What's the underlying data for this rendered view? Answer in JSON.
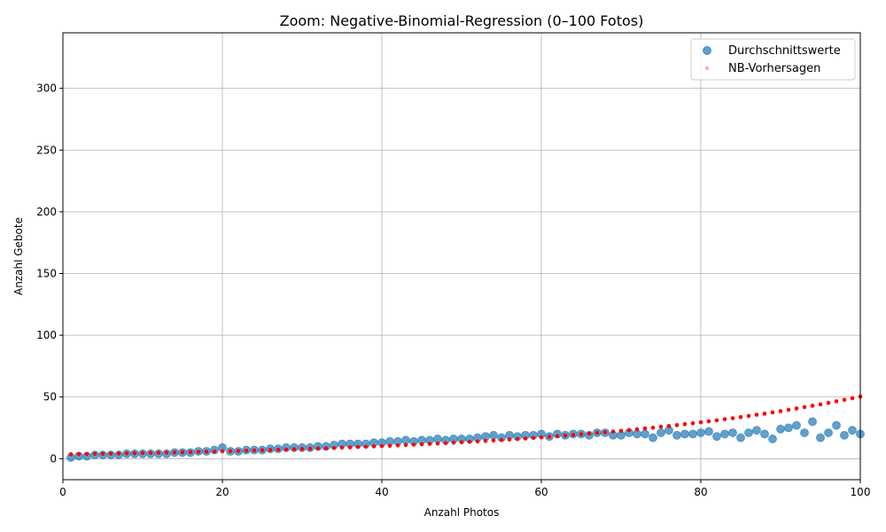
{
  "chart_data": {
    "type": "scatter",
    "title": "Zoom: Negative-Binomial-Regression (0–100 Fotos)",
    "xlabel": "Anzahl Photos",
    "ylabel": "Anzahl Gebote",
    "xlim": [
      0,
      100
    ],
    "ylim": [
      -17,
      345
    ],
    "xticks": [
      0,
      20,
      40,
      60,
      80,
      100
    ],
    "yticks": [
      0,
      50,
      100,
      150,
      200,
      250,
      300
    ],
    "grid": true,
    "legend_position": "top-right",
    "series": [
      {
        "name": "Durchschnittswerte",
        "marker": "circle",
        "color": "#1f77b4",
        "x": [
          1,
          2,
          3,
          4,
          5,
          6,
          7,
          8,
          9,
          10,
          11,
          12,
          13,
          14,
          15,
          16,
          17,
          18,
          19,
          20,
          21,
          22,
          23,
          24,
          25,
          26,
          27,
          28,
          29,
          30,
          31,
          32,
          33,
          34,
          35,
          36,
          37,
          38,
          39,
          40,
          41,
          42,
          43,
          44,
          45,
          46,
          47,
          48,
          49,
          50,
          51,
          52,
          53,
          54,
          55,
          56,
          57,
          58,
          59,
          60,
          61,
          62,
          63,
          64,
          65,
          66,
          67,
          68,
          69,
          70,
          71,
          72,
          73,
          74,
          75,
          76,
          77,
          78,
          79,
          80,
          81,
          82,
          83,
          84,
          85,
          86,
          87,
          88,
          89,
          90,
          91,
          92,
          93,
          94,
          95,
          96,
          97,
          98,
          99,
          100
        ],
        "y": [
          1,
          2,
          2,
          3,
          3,
          3,
          3,
          4,
          4,
          4,
          4,
          4,
          4,
          5,
          5,
          5,
          6,
          6,
          7,
          9,
          6,
          6,
          7,
          7,
          7,
          8,
          8,
          9,
          9,
          9,
          9,
          10,
          10,
          11,
          12,
          12,
          12,
          12,
          13,
          13,
          14,
          14,
          15,
          14,
          15,
          15,
          16,
          15,
          16,
          16,
          16,
          17,
          18,
          19,
          17,
          19,
          18,
          19,
          19,
          20,
          18,
          20,
          19,
          20,
          20,
          19,
          21,
          21,
          19,
          19,
          21,
          20,
          20,
          17,
          21,
          23,
          19,
          20,
          20,
          21,
          22,
          18,
          20,
          21,
          17,
          21,
          23,
          20,
          16,
          24,
          25,
          27,
          21,
          30,
          17,
          21,
          27,
          19,
          23,
          20
        ]
      },
      {
        "name": "NB-Vorhersagen",
        "marker": "dot",
        "color": "#ff0000",
        "x": [
          1,
          2,
          3,
          4,
          5,
          6,
          7,
          8,
          9,
          10,
          11,
          12,
          13,
          14,
          15,
          16,
          17,
          18,
          19,
          20,
          21,
          22,
          23,
          24,
          25,
          26,
          27,
          28,
          29,
          30,
          31,
          32,
          33,
          34,
          35,
          36,
          37,
          38,
          39,
          40,
          41,
          42,
          43,
          44,
          45,
          46,
          47,
          48,
          49,
          50,
          51,
          52,
          53,
          54,
          55,
          56,
          57,
          58,
          59,
          60,
          61,
          62,
          63,
          64,
          65,
          66,
          67,
          68,
          69,
          70,
          71,
          72,
          73,
          74,
          75,
          76,
          77,
          78,
          79,
          80,
          81,
          82,
          83,
          84,
          85,
          86,
          87,
          88,
          89,
          90,
          91,
          92,
          93,
          94,
          95,
          96,
          97,
          98,
          99,
          100
        ],
        "y": [
          3.6,
          3.7,
          3.8,
          3.9,
          4.0,
          4.1,
          4.2,
          4.4,
          4.5,
          4.6,
          4.7,
          4.8,
          5.0,
          5.1,
          5.3,
          5.4,
          5.6,
          5.7,
          5.9,
          6.0,
          6.2,
          6.3,
          6.5,
          6.7,
          6.9,
          7.1,
          7.3,
          7.5,
          7.7,
          7.9,
          8.1,
          8.3,
          8.5,
          8.7,
          9.0,
          9.2,
          9.5,
          9.7,
          10.0,
          10.2,
          10.5,
          10.8,
          11.1,
          11.4,
          11.7,
          12.0,
          12.3,
          12.6,
          13.0,
          13.3,
          13.7,
          14.0,
          14.4,
          14.8,
          15.2,
          15.6,
          16.0,
          16.4,
          16.9,
          17.3,
          17.8,
          18.3,
          18.8,
          19.3,
          19.8,
          20.3,
          20.9,
          21.4,
          22.0,
          22.6,
          23.2,
          23.8,
          24.5,
          25.1,
          25.8,
          26.5,
          27.2,
          28.0,
          28.7,
          29.5,
          30.3,
          31.1,
          32.0,
          32.8,
          33.7,
          34.6,
          35.6,
          36.5,
          37.5,
          38.5,
          39.6,
          40.7,
          41.8,
          42.9,
          44.0,
          45.2,
          46.5,
          47.7,
          49.0,
          50.3
        ]
      }
    ]
  }
}
